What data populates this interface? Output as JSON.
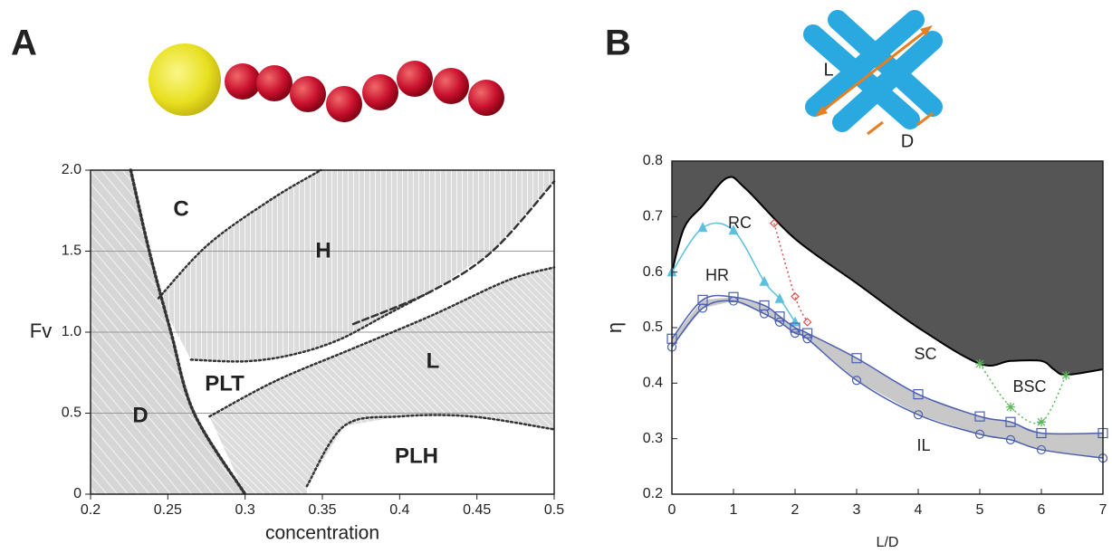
{
  "chart_data": [
    {
      "type": "phase",
      "panel": "A",
      "xlabel": "concentration",
      "ylabel": "Fv",
      "xlim": [
        0.2,
        0.5
      ],
      "ylim": [
        0,
        2
      ],
      "xticks": [
        0.2,
        0.25,
        0.3,
        0.35,
        0.4,
        0.45,
        0.5
      ],
      "yticks": [
        0,
        0.5,
        {
          "value": 1,
          "label": "1.0"
        },
        1.5,
        {
          "value": 2,
          "label": "2.0"
        }
      ],
      "grid": true,
      "region_labels": [
        "C",
        "H",
        "D",
        "PLT",
        "L",
        "PLH"
      ],
      "series": [
        {
          "x": [
            0.226,
            0.238,
            0.252,
            0.267,
            0.3
          ],
          "values": [
            2,
            1.5,
            1.0,
            0.5,
            0
          ],
          "dash": "dotted",
          "color": "#333333"
        },
        {
          "x": [
            0.244,
            0.276,
            0.317,
            0.349
          ],
          "values": [
            1.21,
            1.54,
            1.82,
            2.0
          ],
          "dash": "dotted",
          "color": "#333333"
        },
        {
          "x": [
            0.265,
            0.3,
            0.33,
            0.36,
            0.39,
            0.42
          ],
          "values": [
            0.83,
            0.82,
            0.86,
            0.95,
            1.1,
            1.25
          ],
          "dash": "dotted",
          "color": "#333333"
        },
        {
          "x": [
            0.37,
            0.42,
            0.46,
            0.5
          ],
          "values": [
            1.05,
            1.25,
            1.5,
            1.93
          ],
          "dash": "dashed",
          "color": "#333333"
        },
        {
          "x": [
            0.277,
            0.32,
            0.37,
            0.42,
            0.47,
            0.5
          ],
          "values": [
            0.48,
            0.7,
            0.9,
            1.1,
            1.32,
            1.4
          ],
          "dash": "dotted",
          "color": "#333333"
        },
        {
          "x": [
            0.34,
            0.364,
            0.4,
            0.446,
            0.5
          ],
          "values": [
            0.05,
            0.42,
            0.48,
            0.48,
            0.4
          ],
          "dash": "dotted",
          "color": "#333333"
        }
      ]
    },
    {
      "type": "line",
      "panel": "B",
      "xlabel": "L/D",
      "ylabel": "η",
      "xlim": [
        0,
        7
      ],
      "ylim": [
        0.2,
        0.8
      ],
      "xticks": [
        0,
        1,
        2,
        3,
        4,
        5,
        6,
        7
      ],
      "yticks": [
        0.2,
        0.3,
        0.4,
        0.5,
        0.6,
        0.7,
        0.8
      ],
      "region_labels": [
        "RC",
        "HR",
        "SC",
        "BSC",
        "IL"
      ],
      "illustration_labels": [
        "L",
        "D"
      ],
      "series": [
        {
          "x": [
            0,
            0.2,
            0.5,
            0.9,
            1.2,
            2,
            3,
            4,
            5,
            5.5,
            6,
            6.2,
            6.4,
            7
          ],
          "values": [
            0.6,
            0.68,
            0.72,
            0.77,
            0.75,
            0.66,
            0.58,
            0.5,
            0.435,
            0.44,
            0.44,
            0.425,
            0.415,
            0.425
          ],
          "color": "#000000",
          "fill": "#555555"
        },
        {
          "x": [
            0,
            0.5,
            1,
            1.5,
            1.75,
            2
          ],
          "values": [
            0.6,
            0.68,
            0.675,
            0.583,
            0.552,
            0.51
          ],
          "color": "#5bc0de",
          "marker": "triangle"
        },
        {
          "x": [
            1.66,
            2,
            2.2
          ],
          "values": [
            0.688,
            0.556,
            0.51
          ],
          "color": "#d9534f",
          "marker": "diamond",
          "dash": "dotted"
        },
        {
          "x": [
            5,
            5.5,
            6,
            6.4
          ],
          "values": [
            0.435,
            0.357,
            0.33,
            0.414
          ],
          "color": "#5cb85c",
          "marker": "star",
          "dash": "dotted"
        },
        {
          "x": [
            0,
            0.5,
            1,
            1.5,
            1.75,
            2,
            2.2,
            3,
            4,
            5,
            5.5,
            6,
            7
          ],
          "values": [
            0.48,
            0.55,
            0.555,
            0.54,
            0.52,
            0.5,
            0.49,
            0.445,
            0.38,
            0.34,
            0.33,
            0.31,
            0.31
          ],
          "color": "#4a5fb0",
          "marker": "square",
          "band_fill": "#c8c8c8"
        },
        {
          "x": [
            0,
            0.5,
            1,
            1.5,
            1.75,
            2,
            2.2,
            3,
            4,
            5,
            5.5,
            6,
            7
          ],
          "values": [
            0.465,
            0.535,
            0.548,
            0.525,
            0.51,
            0.49,
            0.48,
            0.405,
            0.343,
            0.308,
            0.298,
            0.28,
            0.265
          ],
          "color": "#4a5fb0",
          "marker": "circle"
        }
      ]
    }
  ]
}
